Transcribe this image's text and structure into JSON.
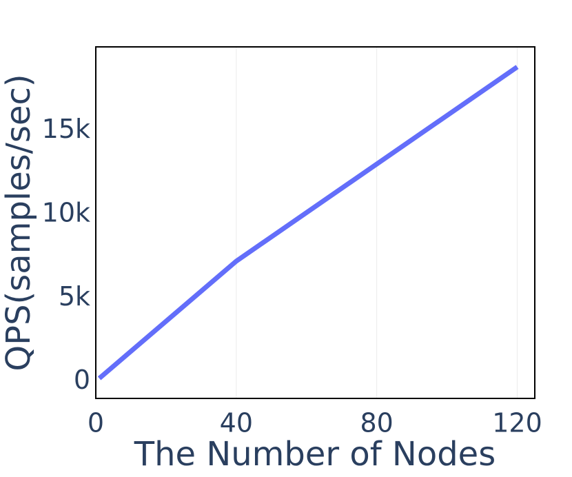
{
  "chart_data": {
    "type": "line",
    "x_label": "The Number of Nodes",
    "y_label": "QPS(samples/sec)",
    "x": [
      1,
      40,
      80,
      120
    ],
    "series": [
      {
        "color": "#636efa",
        "values": [
          200,
          7200,
          13000,
          18800
        ]
      }
    ],
    "xlim": [
      0,
      125
    ],
    "xticks": [
      0,
      40,
      80,
      120
    ],
    "ylim": [
      -1000,
      20000
    ],
    "yticks": [
      0,
      {
        "value": 5000,
        "label": "5k"
      },
      {
        "value": 10000,
        "label": "10k"
      },
      {
        "value": 15000,
        "label": "15k"
      }
    ],
    "xgrid": true
  }
}
